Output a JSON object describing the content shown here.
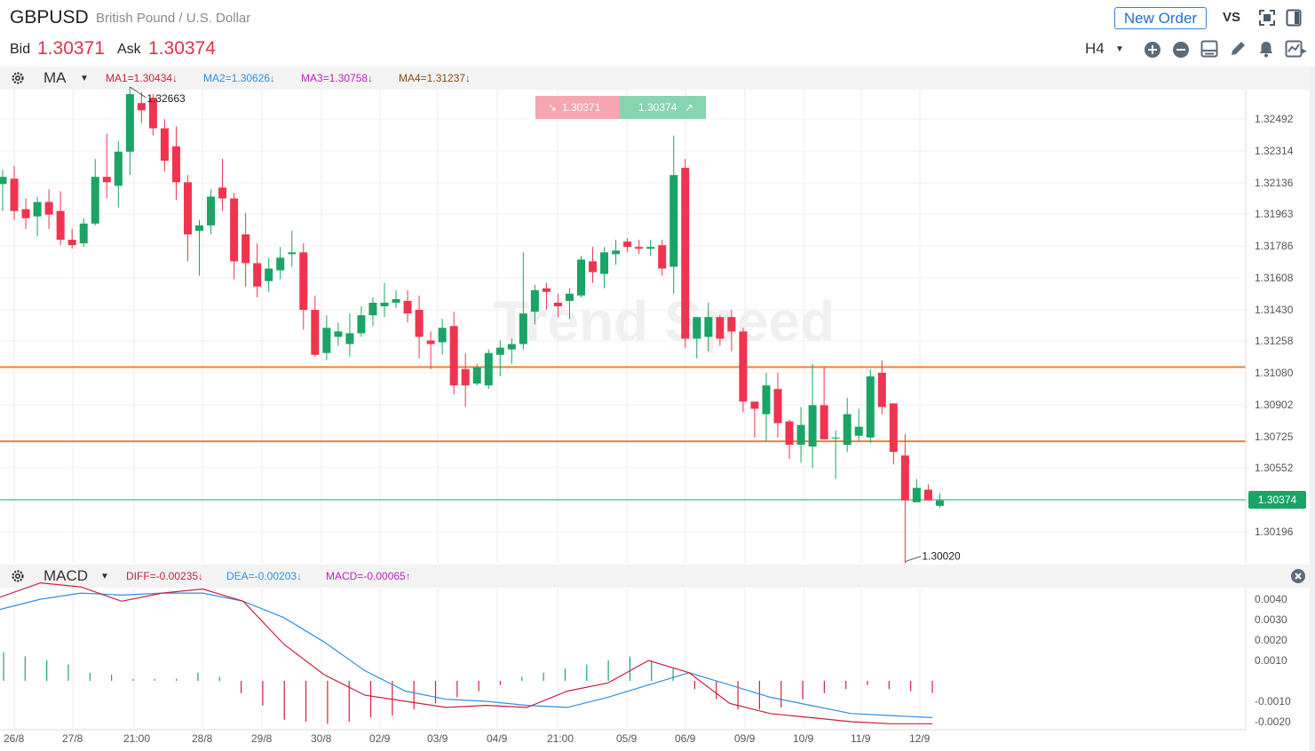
{
  "header": {
    "symbol": "GBPUSD",
    "description": "British Pound / U.S. Dollar",
    "bid_label": "Bid",
    "bid_value": "1.30371",
    "ask_label": "Ask",
    "ask_value": "1.30374",
    "new_order_label": "New Order",
    "vs_label": "VS",
    "timeframe": "H4"
  },
  "colors": {
    "up": "#1aa466",
    "down": "#f0344f",
    "level_line": "#f08030",
    "price_line": "#2a9d7a",
    "dif": "#cc1f3a",
    "dea": "#2f8fe0",
    "macd_pos": "#1aa466",
    "macd_neg": "#d81f3a"
  },
  "ma_bar": {
    "name": "MA",
    "ma1": "MA1=1.30434↓",
    "ma2": "MA2=1.30626↓",
    "ma3": "MA3=1.30758↓",
    "ma4": "MA4=1.31237↓"
  },
  "macd_bar": {
    "name": "MACD",
    "diff": "DIFF=-0.00235↓",
    "dea": "DEA=-0.00203↓",
    "macd": "MACD=-0.00065↑"
  },
  "quote_box": {
    "sell": "1.30371",
    "buy": "1.30374"
  },
  "price_tag": "1.30374",
  "watermark": "Trend Speed",
  "chart_data": [
    {
      "type": "candlestick",
      "timeframe": "H4",
      "x_labels": [
        "26/8",
        "27/8",
        "21:00",
        "28/8",
        "29/8",
        "30/8",
        "02/9",
        "03/9",
        "04/9",
        "21:00",
        "05/9",
        "06/9",
        "09/9",
        "10/9",
        "11/9",
        "12/9"
      ],
      "y_ticks": [
        "1.32492",
        "1.32314",
        "1.32136",
        "1.31963",
        "1.31786",
        "1.31608",
        "1.31430",
        "1.31258",
        "1.31080",
        "1.30902",
        "1.30725",
        "1.30552",
        "1.30196"
      ],
      "ylim": [
        1.3002,
        1.3266
      ],
      "annotations": {
        "high": "1.32663",
        "low": "1.30020"
      },
      "horizontal_lines": [
        1.31112,
        1.30699
      ],
      "current_price": 1.30374,
      "candles": [
        [
          1.3213,
          1.3221,
          1.3198,
          1.3217
        ],
        [
          1.3216,
          1.3223,
          1.3193,
          1.3198
        ],
        [
          1.3199,
          1.3205,
          1.3188,
          1.3194
        ],
        [
          1.3195,
          1.3206,
          1.3184,
          1.3203
        ],
        [
          1.3203,
          1.321,
          1.3188,
          1.3196
        ],
        [
          1.3198,
          1.3209,
          1.3179,
          1.3182
        ],
        [
          1.3182,
          1.3188,
          1.3177,
          1.3179
        ],
        [
          1.318,
          1.3194,
          1.3178,
          1.3191
        ],
        [
          1.3191,
          1.3227,
          1.319,
          1.3217
        ],
        [
          1.3217,
          1.3241,
          1.3205,
          1.3214
        ],
        [
          1.3212,
          1.3237,
          1.32,
          1.3231
        ],
        [
          1.3231,
          1.3267,
          1.3218,
          1.3263
        ],
        [
          1.3258,
          1.3264,
          1.3247,
          1.3254
        ],
        [
          1.3261,
          1.3263,
          1.324,
          1.3244
        ],
        [
          1.3244,
          1.3249,
          1.322,
          1.3226
        ],
        [
          1.3234,
          1.3245,
          1.3204,
          1.3214
        ],
        [
          1.3214,
          1.3218,
          1.317,
          1.3185
        ],
        [
          1.3187,
          1.3193,
          1.3162,
          1.319
        ],
        [
          1.319,
          1.321,
          1.3185,
          1.3206
        ],
        [
          1.3211,
          1.3227,
          1.3198,
          1.3205
        ],
        [
          1.3205,
          1.3208,
          1.316,
          1.317
        ],
        [
          1.3185,
          1.3197,
          1.3156,
          1.3169
        ],
        [
          1.3169,
          1.318,
          1.315,
          1.3156
        ],
        [
          1.3159,
          1.3172,
          1.3153,
          1.3166
        ],
        [
          1.3165,
          1.3178,
          1.316,
          1.3172
        ],
        [
          1.3174,
          1.3187,
          1.3167,
          1.3175
        ],
        [
          1.3175,
          1.318,
          1.3132,
          1.3143
        ],
        [
          1.3143,
          1.3151,
          1.3117,
          1.3118
        ],
        [
          1.3119,
          1.314,
          1.3115,
          1.3133
        ],
        [
          1.3128,
          1.3136,
          1.3123,
          1.3131
        ],
        [
          1.3124,
          1.3141,
          1.3117,
          1.313
        ],
        [
          1.313,
          1.3145,
          1.3128,
          1.314
        ],
        [
          1.314,
          1.315,
          1.3134,
          1.3147
        ],
        [
          1.3145,
          1.3158,
          1.3139,
          1.3147
        ],
        [
          1.3147,
          1.3154,
          1.3144,
          1.3149
        ],
        [
          1.3148,
          1.3154,
          1.3136,
          1.3141
        ],
        [
          1.3143,
          1.3151,
          1.3116,
          1.3128
        ],
        [
          1.3126,
          1.3131,
          1.311,
          1.3124
        ],
        [
          1.3125,
          1.3138,
          1.3118,
          1.3133
        ],
        [
          1.3134,
          1.3142,
          1.3096,
          1.3101
        ],
        [
          1.311,
          1.3119,
          1.3089,
          1.3101
        ],
        [
          1.3102,
          1.3113,
          1.3101,
          1.3111
        ],
        [
          1.3101,
          1.3121,
          1.3099,
          1.3119
        ],
        [
          1.3118,
          1.3126,
          1.3106,
          1.3122
        ],
        [
          1.3121,
          1.3127,
          1.3113,
          1.3124
        ],
        [
          1.3124,
          1.3175,
          1.3121,
          1.3141
        ],
        [
          1.3142,
          1.3157,
          1.3135,
          1.3154
        ],
        [
          1.3155,
          1.3158,
          1.3143,
          1.3153
        ],
        [
          1.3147,
          1.3152,
          1.3139,
          1.3145
        ],
        [
          1.3148,
          1.3155,
          1.3138,
          1.3152
        ],
        [
          1.3151,
          1.3173,
          1.315,
          1.3171
        ],
        [
          1.317,
          1.3178,
          1.3158,
          1.3164
        ],
        [
          1.3163,
          1.3178,
          1.3155,
          1.3175
        ],
        [
          1.3174,
          1.3182,
          1.3168,
          1.3176
        ],
        [
          1.3181,
          1.3183,
          1.3175,
          1.3178
        ],
        [
          1.3178,
          1.3182,
          1.3174,
          1.3177
        ],
        [
          1.3177,
          1.3182,
          1.3173,
          1.3178
        ],
        [
          1.3179,
          1.3182,
          1.3162,
          1.3166
        ],
        [
          1.3167,
          1.324,
          1.3152,
          1.3218
        ],
        [
          1.3222,
          1.3227,
          1.3122,
          1.3127
        ],
        [
          1.3127,
          1.3138,
          1.3116,
          1.3139
        ],
        [
          1.3128,
          1.3147,
          1.312,
          1.3139
        ],
        [
          1.3139,
          1.314,
          1.3123,
          1.3127
        ],
        [
          1.3139,
          1.3143,
          1.312,
          1.3131
        ],
        [
          1.3131,
          1.3133,
          1.3086,
          1.3092
        ],
        [
          1.3092,
          1.309,
          1.3072,
          1.3088
        ],
        [
          1.3085,
          1.3108,
          1.307,
          1.3101
        ],
        [
          1.3099,
          1.3108,
          1.3072,
          1.308
        ],
        [
          1.3081,
          1.3082,
          1.306,
          1.3068
        ],
        [
          1.3068,
          1.3089,
          1.3058,
          1.3079
        ],
        [
          1.3067,
          1.3113,
          1.3055,
          1.309
        ],
        [
          1.309,
          1.3111,
          1.3073,
          1.3071
        ],
        [
          1.3072,
          1.3076,
          1.3049,
          1.3072
        ],
        [
          1.3068,
          1.3094,
          1.3064,
          1.3085
        ],
        [
          1.3073,
          1.3088,
          1.307,
          1.3078
        ],
        [
          1.3072,
          1.311,
          1.3069,
          1.3106
        ],
        [
          1.3108,
          1.3115,
          1.3085,
          1.3089
        ],
        [
          1.3091,
          1.3089,
          1.3057,
          1.3064
        ],
        [
          1.3062,
          1.3074,
          1.3002,
          1.3037
        ],
        [
          1.3036,
          1.3049,
          1.3038,
          1.3044
        ],
        [
          1.3043,
          1.3046,
          1.3037,
          1.3037
        ],
        [
          1.3034,
          1.3041,
          1.3033,
          1.3037
        ]
      ]
    },
    {
      "type": "line",
      "indicator": "MACD",
      "x_labels": [
        "26/8",
        "27/8",
        "21:00",
        "28/8",
        "29/8",
        "30/8",
        "02/9",
        "03/9",
        "04/9",
        "21:00",
        "05/9",
        "06/9",
        "09/9",
        "10/9",
        "11/9",
        "12/9"
      ],
      "y_ticks": [
        "0.0040",
        "0.0030",
        "0.0020",
        "0.0010",
        "-0.0010",
        "-0.0020"
      ],
      "ylim": [
        -0.0024,
        0.0049
      ],
      "series": [
        {
          "name": "DIFF",
          "values": [
            0.0041,
            0.0048,
            0.0046,
            0.0039,
            0.0043,
            0.0045,
            0.0039,
            0.0018,
            0.0003,
            -0.0007,
            -0.001,
            -0.0013,
            -0.0012,
            -0.0013,
            -0.0005,
            -0.0001,
            0.001,
            0.0004,
            -0.0011,
            -0.0016,
            -0.0018,
            -0.002,
            -0.0021,
            -0.0021
          ]
        },
        {
          "name": "DEA",
          "values": [
            0.0035,
            0.004,
            0.0043,
            0.0042,
            0.0043,
            0.0043,
            0.0039,
            0.0031,
            0.0019,
            0.0005,
            -0.0005,
            -0.0009,
            -0.001,
            -0.0012,
            -0.0013,
            -0.0008,
            -0.0002,
            0.0004,
            -0.0002,
            -0.0008,
            -0.0012,
            -0.0016,
            -0.0017,
            -0.0018
          ]
        },
        {
          "name": "MACD",
          "values": [
            0.0014,
            0.0012,
            0.001,
            0.0008,
            0.0004,
            0.0003,
            0.0001,
            0.0001,
            0.0001,
            0.0004,
            0.0002,
            -0.0006,
            -0.0012,
            -0.0019,
            -0.002,
            -0.0021,
            -0.002,
            -0.0018,
            -0.0017,
            -0.0014,
            -0.0011,
            -0.0008,
            -0.0005,
            -0.0002,
            0.0002,
            0.0004,
            0.0006,
            0.0008,
            0.001,
            0.0012,
            0.001,
            0.0006,
            -0.0004,
            -0.0009,
            -0.0014,
            -0.0014,
            -0.0013,
            -0.0009,
            -0.0006,
            -0.0004,
            -0.0002,
            -0.0004,
            -0.0005,
            -0.0006
          ]
        }
      ]
    }
  ]
}
